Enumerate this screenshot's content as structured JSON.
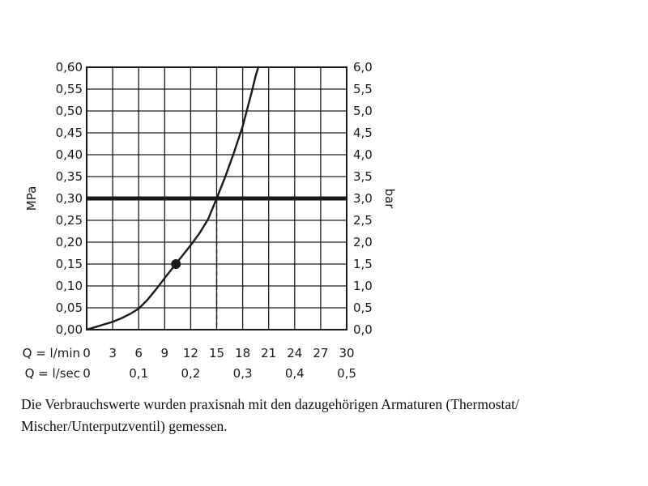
{
  "chart_data": {
    "type": "line",
    "y_left": {
      "label": "MPa",
      "ticks": [
        "0,00",
        "0,05",
        "0,10",
        "0,15",
        "0,20",
        "0,25",
        "0,30",
        "0,35",
        "0,40",
        "0,45",
        "0,50",
        "0,55",
        "0,60"
      ],
      "range": [
        0,
        0.6
      ]
    },
    "y_right": {
      "label": "bar",
      "ticks": [
        "0,0",
        "0,5",
        "1,0",
        "1,5",
        "2,0",
        "2,5",
        "3,0",
        "3,5",
        "4,0",
        "4,5",
        "5,0",
        "5,5",
        "6,0"
      ]
    },
    "x_lmin": {
      "label": "Q = l/min",
      "ticks": [
        "0",
        "3",
        "6",
        "9",
        "12",
        "15",
        "18",
        "21",
        "24",
        "27",
        "30"
      ],
      "range": [
        0,
        30
      ]
    },
    "x_lsec": {
      "label": "Q = l/sec",
      "ticks": [
        "0",
        "0,1",
        "0,2",
        "0,3",
        "0,4",
        "0,5"
      ]
    },
    "grid": true,
    "series": [
      {
        "x": [
          0,
          1,
          2,
          3,
          4,
          5,
          6,
          7,
          8,
          9,
          10,
          11,
          12,
          13,
          14,
          15,
          16,
          17,
          18,
          19,
          19.5,
          19.8
        ],
        "y": [
          0,
          0.006,
          0.012,
          0.018,
          0.026,
          0.036,
          0.048,
          0.068,
          0.092,
          0.118,
          0.143,
          0.168,
          0.193,
          0.22,
          0.252,
          0.3,
          0.35,
          0.405,
          0.465,
          0.54,
          0.58,
          0.6
        ],
        "color": "#1a1a1a"
      }
    ],
    "reference_line": {
      "y": 0.3,
      "color": "#1a1a1a"
    },
    "marker": {
      "x": 10.3,
      "y": 0.15
    },
    "intersection": {
      "x": 15,
      "y": 0.3
    }
  },
  "caption": {
    "line1": "Die Verbrauchswerte wurden praxisnah mit den dazugehörigen Armaturen (Thermostat/",
    "line2": "Mischer/Unterputzventil) gemessen."
  }
}
